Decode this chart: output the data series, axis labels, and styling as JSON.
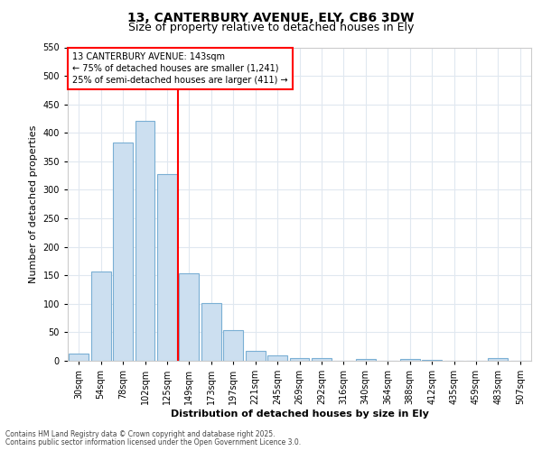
{
  "title_line1": "13, CANTERBURY AVENUE, ELY, CB6 3DW",
  "title_line2": "Size of property relative to detached houses in Ely",
  "xlabel": "Distribution of detached houses by size in Ely",
  "ylabel": "Number of detached properties",
  "bar_labels": [
    "30sqm",
    "54sqm",
    "78sqm",
    "102sqm",
    "125sqm",
    "149sqm",
    "173sqm",
    "197sqm",
    "221sqm",
    "245sqm",
    "269sqm",
    "292sqm",
    "316sqm",
    "340sqm",
    "364sqm",
    "388sqm",
    "412sqm",
    "435sqm",
    "459sqm",
    "483sqm",
    "507sqm"
  ],
  "bar_values": [
    13,
    157,
    383,
    421,
    328,
    153,
    101,
    54,
    18,
    10,
    5,
    4,
    0,
    3,
    0,
    3,
    1,
    0,
    0,
    4,
    0
  ],
  "bar_color": "#ccdff0",
  "bar_edge_color": "#7aafd4",
  "vline_x_idx": 5,
  "vline_color": "red",
  "annotation_text": "13 CANTERBURY AVENUE: 143sqm\n← 75% of detached houses are smaller (1,241)\n25% of semi-detached houses are larger (411) →",
  "annotation_box_color": "white",
  "annotation_box_edge": "red",
  "ylim": [
    0,
    550
  ],
  "yticks": [
    0,
    50,
    100,
    150,
    200,
    250,
    300,
    350,
    400,
    450,
    500,
    550
  ],
  "footer1": "Contains HM Land Registry data © Crown copyright and database right 2025.",
  "footer2": "Contains public sector information licensed under the Open Government Licence 3.0.",
  "bg_color": "#ffffff",
  "plot_bg_color": "#ffffff",
  "grid_color": "#e0e8f0",
  "title1_fontsize": 10,
  "title2_fontsize": 9,
  "xlabel_fontsize": 8,
  "ylabel_fontsize": 8,
  "tick_fontsize": 7,
  "annot_fontsize": 7,
  "footer_fontsize": 5.5
}
